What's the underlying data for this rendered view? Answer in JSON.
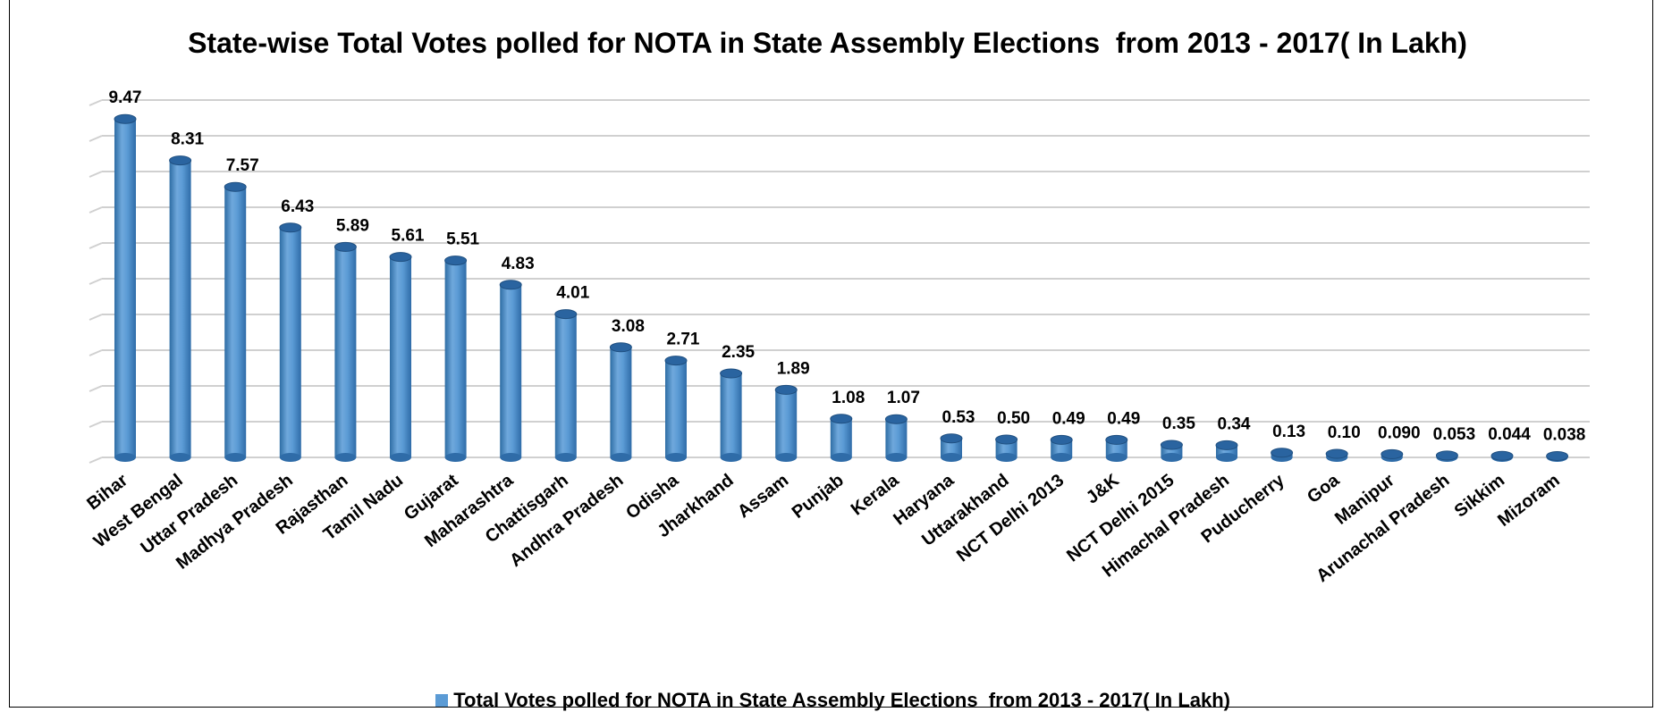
{
  "chart_data": {
    "type": "bar",
    "title": "State-wise Total Votes polled for NOTA in State Assembly Elections  from 2013 - 2017( In Lakh)",
    "xlabel": "",
    "ylabel": "",
    "ylim": [
      0,
      10
    ],
    "grid": true,
    "legend_position": "bottom",
    "categories": [
      "Bihar",
      "West Bengal",
      "Uttar Pradesh",
      "Madhya Pradesh",
      "Rajasthan",
      "Tamil Nadu",
      "Gujarat",
      "Maharashtra",
      "Chattisgarh",
      "Andhra Pradesh",
      "Odisha",
      "Jharkhand",
      "Assam",
      "Punjab",
      "Kerala",
      "Haryana",
      "Uttarakhand",
      "NCT Delhi 2013",
      "J&K",
      "NCT Delhi 2015",
      "Himachal Pradesh",
      "Puducherry",
      "Goa",
      "Manipur",
      "Arunachal Pradesh",
      "Sikkim",
      "Mizoram"
    ],
    "series": [
      {
        "name": "Total Votes polled for NOTA in State Assembly Elections  from 2013 - 2017( In Lakh)",
        "color": "#5b9bd5",
        "values": [
          9.47,
          8.31,
          7.57,
          6.43,
          5.89,
          5.61,
          5.51,
          4.83,
          4.01,
          3.08,
          2.71,
          2.35,
          1.89,
          1.08,
          1.07,
          0.53,
          0.5,
          0.49,
          0.49,
          0.35,
          0.34,
          0.13,
          0.1,
          0.09,
          0.053,
          0.044,
          0.038
        ],
        "labels": [
          "9.47",
          "8.31",
          "7.57",
          "6.43",
          "5.89",
          "5.61",
          "5.51",
          "4.83",
          "4.01",
          "3.08",
          "2.71",
          "2.35",
          "1.89",
          "1.08",
          "1.07",
          "0.53",
          "0.50",
          "0.49",
          "0.49",
          "0.35",
          "0.34",
          "0.13",
          "0.10",
          "0.090",
          "0.053",
          "0.044",
          "0.038"
        ]
      }
    ]
  }
}
